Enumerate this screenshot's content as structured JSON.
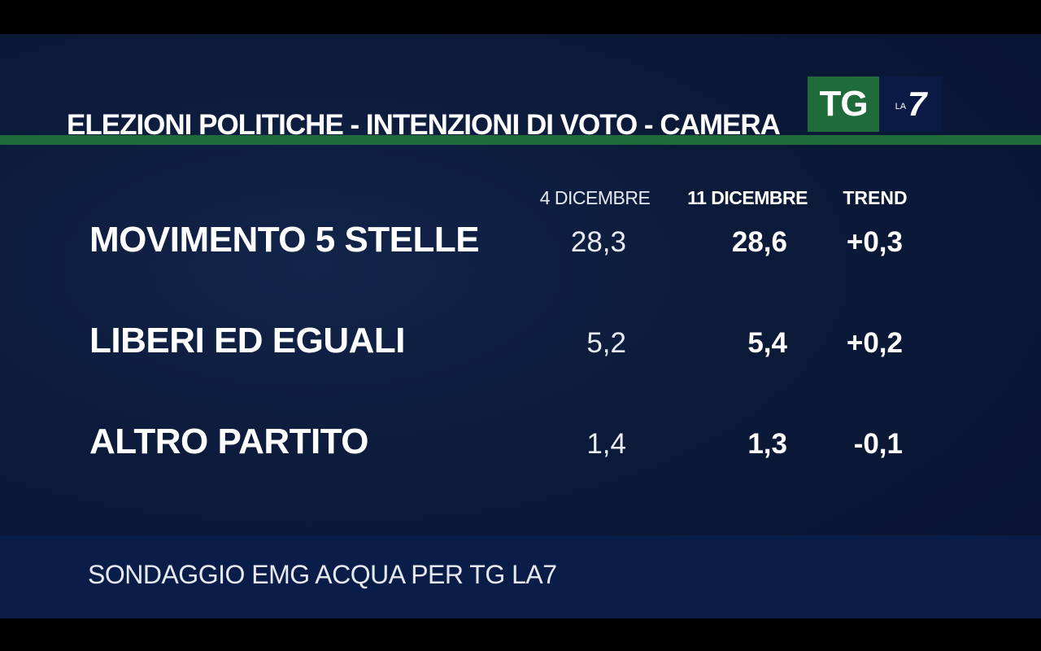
{
  "header": {
    "title": "ELEZIONI POLITICHE - INTENZIONI DI VOTO - CAMERA"
  },
  "logo": {
    "tg": "TG",
    "la": "LA",
    "seven": "7"
  },
  "table": {
    "columns": [
      "4 DICEMBRE",
      "11 DICEMBRE",
      "TREND"
    ],
    "rows": [
      {
        "party": "MOVIMENTO 5 STELLE",
        "previous": "28,3",
        "current": "28,6",
        "trend": "+0,3"
      },
      {
        "party": "LIBERI ED EGUALI",
        "previous": "5,2",
        "current": "5,4",
        "trend": "+0,2"
      },
      {
        "party": "ALTRO PARTITO",
        "previous": "1,4",
        "current": "1,3",
        "trend": "-0,1"
      }
    ]
  },
  "footer": {
    "source": "SONDAGGIO EMG ACQUA PER TG LA7"
  },
  "colors": {
    "background": "#0c1a39",
    "accent_green": "#1f6b39",
    "footer_band": "#0a1d48",
    "text": "#ffffff"
  }
}
